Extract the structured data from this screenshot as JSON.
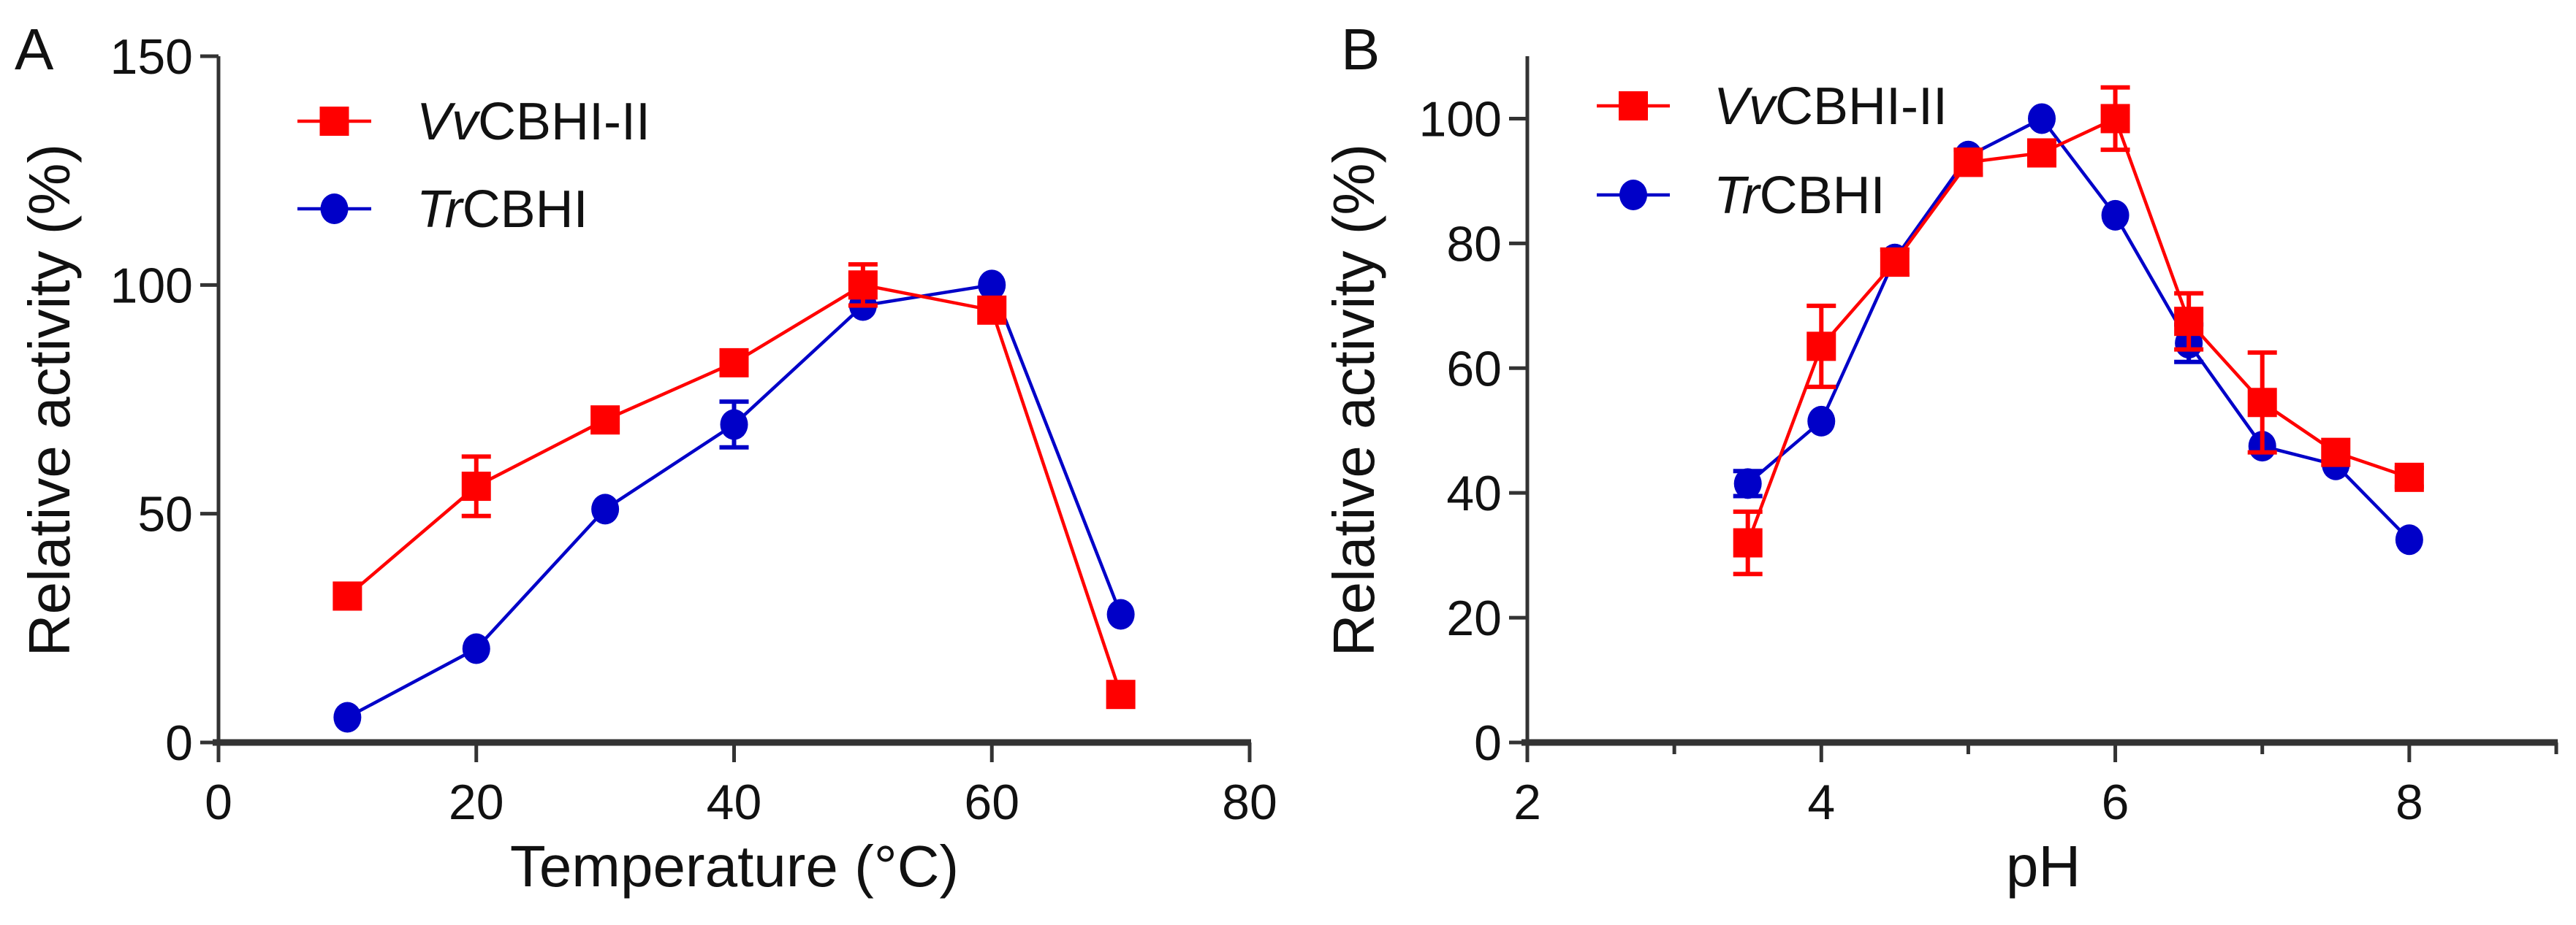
{
  "colors": {
    "vv": "#ff0000",
    "tr": "#0000c8",
    "axis": "#333333"
  },
  "chart_data": [
    {
      "type": "line",
      "panel_label": "A",
      "xlabel": "Temperature (°C)",
      "ylabel": "Relative activity (%)",
      "xlim": [
        0,
        80
      ],
      "ylim": [
        0,
        150
      ],
      "xticks": [
        0,
        20,
        40,
        60,
        80
      ],
      "yticks": [
        0,
        50,
        100,
        150
      ],
      "legend": "top-left",
      "series": [
        {
          "name": "VvCBHI-II",
          "name_italic": "Vv",
          "name_rest": "CBHI-II",
          "marker": "square",
          "color_key": "vv",
          "x": [
            10,
            20,
            30,
            40,
            50,
            60,
            70
          ],
          "y": [
            32,
            56,
            70.5,
            83,
            100,
            94.5,
            10.5
          ],
          "err": [
            0,
            6.5,
            0,
            2,
            4.5,
            0,
            0
          ]
        },
        {
          "name": "TrCBHI",
          "name_italic": "Tr",
          "name_rest": "CBHI",
          "marker": "circle",
          "color_key": "tr",
          "x": [
            10,
            20,
            30,
            40,
            50,
            60,
            70
          ],
          "y": [
            5.5,
            20.5,
            51,
            69.5,
            95.5,
            100,
            28
          ],
          "err": [
            0,
            0,
            0,
            5,
            0,
            0,
            0
          ]
        }
      ]
    },
    {
      "type": "line",
      "panel_label": "B",
      "xlabel": "pH",
      "ylabel": "Relative activity (%)",
      "xlim": [
        2,
        9
      ],
      "ylim": [
        0,
        110
      ],
      "xticks": [
        2,
        4,
        6,
        8
      ],
      "xminor": [
        3,
        5,
        7,
        9
      ],
      "yticks": [
        0,
        20,
        40,
        60,
        80,
        100
      ],
      "legend": "top-left",
      "series": [
        {
          "name": "VvCBHI-II",
          "name_italic": "Vv",
          "name_rest": "CBHI-II",
          "marker": "square",
          "color_key": "vv",
          "x": [
            3.5,
            4,
            4.5,
            5,
            5.5,
            6,
            6.5,
            7,
            7.5,
            8
          ],
          "y": [
            32,
            63.5,
            77,
            93,
            94.5,
            100,
            67.5,
            54.5,
            46.5,
            42.5
          ],
          "err": [
            5,
            6.5,
            2,
            2,
            0,
            5,
            4.5,
            8,
            0,
            1.5
          ]
        },
        {
          "name": "TrCBHI",
          "name_italic": "Tr",
          "name_rest": "CBHI",
          "marker": "circle",
          "color_key": "tr",
          "x": [
            3.5,
            4,
            4.5,
            5,
            5.5,
            6,
            6.5,
            7,
            7.5,
            8
          ],
          "y": [
            41.5,
            51.5,
            77.5,
            94,
            100,
            84.5,
            64,
            47.5,
            44.5,
            32.5
          ],
          "err": [
            2,
            0,
            0,
            0,
            0,
            0,
            3,
            0,
            0,
            0
          ]
        }
      ]
    }
  ]
}
